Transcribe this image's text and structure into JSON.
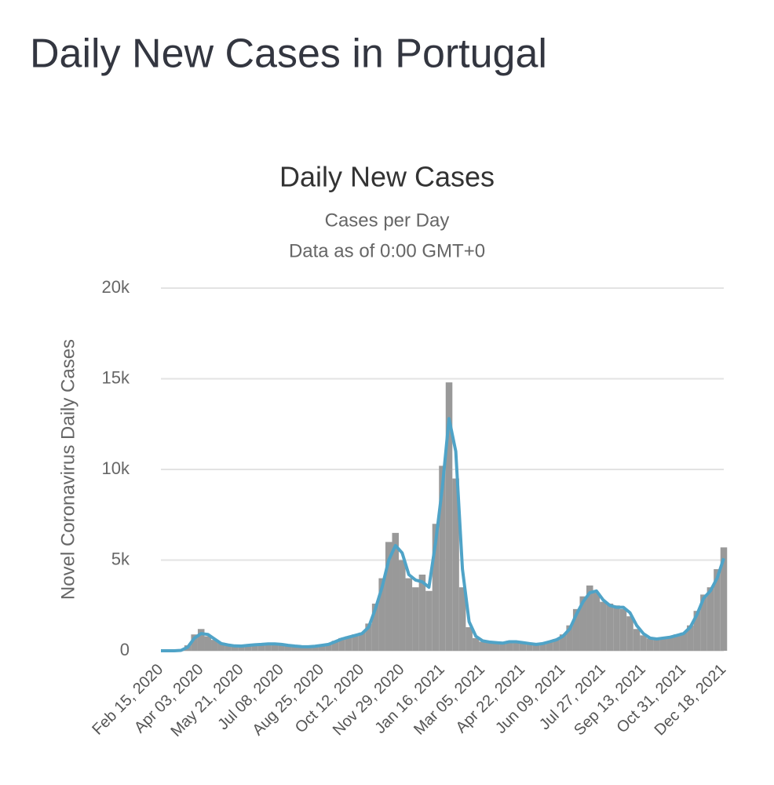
{
  "page_title": "Daily New Cases in Portugal",
  "chart_data": {
    "type": "bar",
    "title": "Daily New Cases",
    "subtitle": [
      "Cases per Day",
      "Data as of 0:00 GMT+0"
    ],
    "y_label": "Novel Coronavirus Daily Cases",
    "categories": [
      "Feb 15, 2020",
      null,
      null,
      null,
      null,
      null,
      "Apr 03, 2020",
      null,
      null,
      null,
      null,
      null,
      "May 21, 2020",
      null,
      null,
      null,
      null,
      null,
      "Jul 08, 2020",
      null,
      null,
      null,
      null,
      null,
      "Aug 25, 2020",
      null,
      null,
      null,
      null,
      null,
      "Oct 12, 2020",
      null,
      null,
      null,
      null,
      null,
      "Nov 29, 2020",
      null,
      null,
      null,
      null,
      null,
      "Jan 16, 2021",
      null,
      null,
      null,
      null,
      null,
      "Mar 05, 2021",
      null,
      null,
      null,
      null,
      null,
      "Apr 22, 2021",
      null,
      null,
      null,
      null,
      null,
      "Jun 09, 2021",
      null,
      null,
      null,
      null,
      null,
      "Jul 27, 2021",
      null,
      null,
      null,
      null,
      null,
      "Sep 13, 2021",
      null,
      null,
      null,
      null,
      null,
      "Oct 31, 2021",
      null,
      null,
      null,
      null,
      null,
      "Dec 18, 2021"
    ],
    "series": [
      {
        "type": "bar",
        "color": "#999999",
        "values": [
          0,
          0,
          0,
          40,
          300,
          900,
          1200,
          800,
          600,
          450,
          300,
          250,
          300,
          280,
          350,
          330,
          400,
          420,
          330,
          300,
          240,
          200,
          250,
          280,
          330,
          400,
          550,
          700,
          800,
          900,
          1000,
          1500,
          2600,
          4000,
          6000,
          6500,
          5000,
          4000,
          3500,
          4200,
          3300,
          7000,
          10200,
          14800,
          9500,
          3500,
          1300,
          700,
          500,
          500,
          420,
          450,
          550,
          480,
          430,
          380,
          360,
          420,
          520,
          650,
          900,
          1400,
          2300,
          3000,
          3600,
          3200,
          2700,
          2600,
          2500,
          2300,
          1900,
          1200,
          850,
          680,
          640,
          720,
          780,
          900,
          1000,
          1400,
          2200,
          3100,
          3500,
          4500,
          5700
        ]
      },
      {
        "type": "line",
        "color": "#4fa3c7",
        "values": [
          0,
          0,
          0,
          20,
          200,
          700,
          950,
          900,
          650,
          400,
          320,
          270,
          260,
          300,
          330,
          350,
          380,
          380,
          350,
          300,
          260,
          230,
          220,
          250,
          300,
          350,
          500,
          650,
          750,
          850,
          950,
          1300,
          2300,
          3500,
          5000,
          5800,
          5400,
          4200,
          3900,
          3800,
          3500,
          6000,
          9000,
          12800,
          11000,
          4500,
          1600,
          800,
          550,
          480,
          450,
          420,
          500,
          500,
          450,
          400,
          350,
          400,
          500,
          600,
          800,
          1200,
          2000,
          2700,
          3200,
          3300,
          2800,
          2500,
          2400,
          2400,
          2100,
          1400,
          950,
          700,
          650,
          700,
          750,
          850,
          950,
          1300,
          2000,
          2900,
          3300,
          4000,
          5100
        ]
      }
    ],
    "ylim": [
      0,
      20000
    ],
    "yticks": [
      0,
      {
        "value": 5000,
        "label": "5k"
      },
      {
        "value": 10000,
        "label": "10k"
      },
      {
        "value": 15000,
        "label": "15k"
      },
      {
        "value": 20000,
        "label": "20k"
      }
    ],
    "grid": true
  }
}
